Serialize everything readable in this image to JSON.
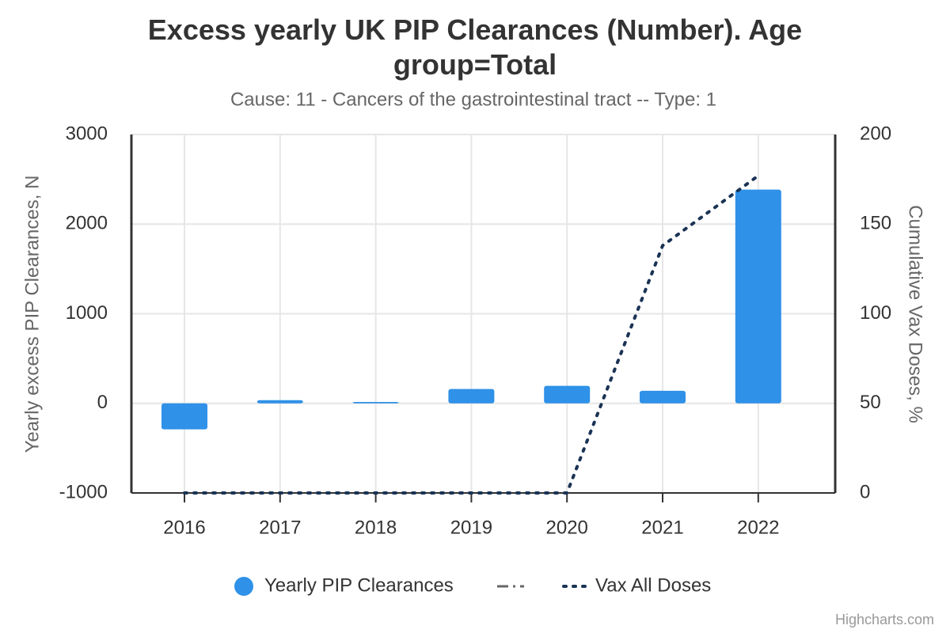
{
  "chart_data": {
    "type": "bar",
    "title": "Excess yearly UK PIP Clearances (Number). Age group=Total",
    "subtitle": "Cause: 11 - Cancers of the gastrointestinal tract -- Type: 1",
    "y_label": "Yearly excess PIP Clearances, N",
    "y2_label": "Cumulative Vax Doses, %",
    "credits": "Highcharts.com",
    "categories": [
      "2016",
      "2017",
      "2018",
      "2019",
      "2020",
      "2021",
      "2022"
    ],
    "series": [
      {
        "name": "Yearly PIP Clearances",
        "type": "bar",
        "color": "#2f91e8",
        "values": [
          -290,
          35,
          15,
          160,
          195,
          140,
          2385
        ]
      },
      {
        "name": "Vax All Doses",
        "type": "line",
        "axis": "y2",
        "color": "#1a3355",
        "values": [
          0,
          0,
          0,
          0,
          0,
          138,
          177
        ]
      }
    ],
    "ylim": [
      -1000,
      3000
    ],
    "yticks": [
      -1000,
      0,
      1000,
      2000,
      3000
    ],
    "y2lim": [
      0,
      200
    ],
    "y2ticks": [
      0,
      50,
      100,
      150,
      200
    ],
    "grid": true
  }
}
